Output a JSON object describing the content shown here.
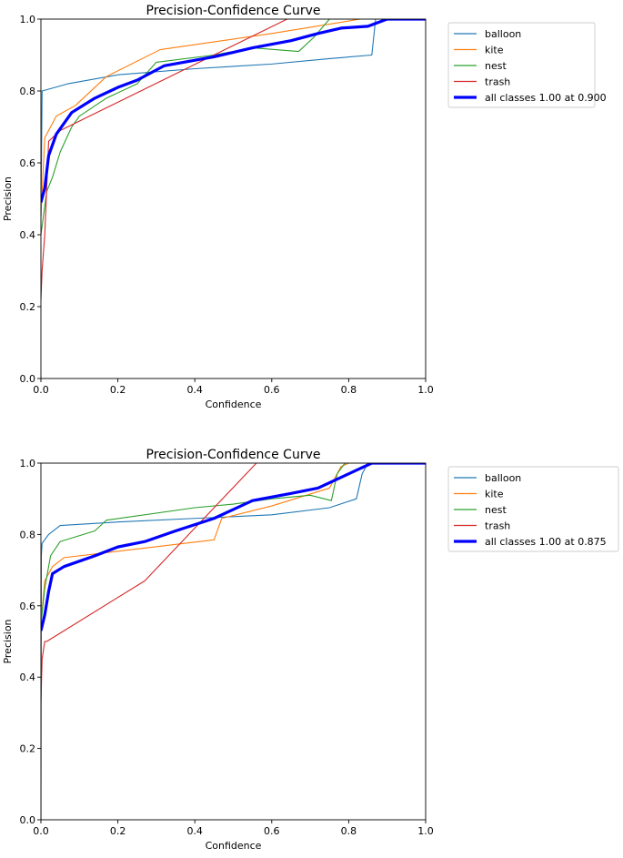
{
  "chart_data": [
    {
      "type": "line",
      "title": "Precision-Confidence Curve",
      "xlabel": "Confidence",
      "ylabel": "Precision",
      "xlim": [
        0.0,
        1.0
      ],
      "ylim": [
        0.0,
        1.0
      ],
      "grid": false,
      "legend_position": "outside-right",
      "x_ticks": [
        "0.0",
        "0.2",
        "0.4",
        "0.6",
        "0.8",
        "1.0"
      ],
      "y_ticks": [
        "0.0",
        "0.2",
        "0.4",
        "0.6",
        "0.8",
        "1.0"
      ],
      "series": [
        {
          "name": "balloon",
          "label": "balloon",
          "color": "#1f77b4",
          "bold": false,
          "points": [
            [
              0.0,
              0.45
            ],
            [
              0.003,
              0.8
            ],
            [
              0.02,
              0.805
            ],
            [
              0.07,
              0.82
            ],
            [
              0.2,
              0.845
            ],
            [
              0.4,
              0.862
            ],
            [
              0.6,
              0.875
            ],
            [
              0.75,
              0.89
            ],
            [
              0.86,
              0.9
            ],
            [
              0.865,
              0.95
            ],
            [
              0.87,
              1.0
            ],
            [
              1.0,
              1.0
            ]
          ]
        },
        {
          "name": "kite",
          "label": "kite",
          "color": "#ff7f0e",
          "bold": false,
          "points": [
            [
              0.0,
              0.45
            ],
            [
              0.01,
              0.67
            ],
            [
              0.04,
              0.73
            ],
            [
              0.09,
              0.76
            ],
            [
              0.17,
              0.84
            ],
            [
              0.31,
              0.915
            ],
            [
              0.6,
              0.96
            ],
            [
              0.83,
              1.0
            ],
            [
              1.0,
              1.0
            ]
          ]
        },
        {
          "name": "nest",
          "label": "nest",
          "color": "#2ca02c",
          "bold": false,
          "points": [
            [
              0.0,
              0.4
            ],
            [
              0.015,
              0.52
            ],
            [
              0.03,
              0.56
            ],
            [
              0.05,
              0.63
            ],
            [
              0.08,
              0.7
            ],
            [
              0.1,
              0.73
            ],
            [
              0.17,
              0.78
            ],
            [
              0.25,
              0.82
            ],
            [
              0.3,
              0.88
            ],
            [
              0.45,
              0.9
            ],
            [
              0.55,
              0.92
            ],
            [
              0.67,
              0.91
            ],
            [
              0.71,
              0.95
            ],
            [
              0.75,
              1.0
            ],
            [
              1.0,
              1.0
            ]
          ]
        },
        {
          "name": "trash",
          "label": "trash",
          "color": "#d62728",
          "bold": false,
          "points": [
            [
              0.0,
              0.22
            ],
            [
              0.003,
              0.3
            ],
            [
              0.01,
              0.4
            ],
            [
              0.02,
              0.66
            ],
            [
              0.05,
              0.69
            ],
            [
              0.64,
              1.0
            ]
          ]
        },
        {
          "name": "all-classes",
          "label": "all classes 1.00 at 0.900",
          "color": "#0000ff",
          "bold": true,
          "points": [
            [
              0.0,
              0.49
            ],
            [
              0.01,
              0.53
            ],
            [
              0.02,
              0.62
            ],
            [
              0.04,
              0.68
            ],
            [
              0.08,
              0.74
            ],
            [
              0.14,
              0.78
            ],
            [
              0.2,
              0.81
            ],
            [
              0.25,
              0.83
            ],
            [
              0.32,
              0.87
            ],
            [
              0.45,
              0.895
            ],
            [
              0.55,
              0.92
            ],
            [
              0.65,
              0.94
            ],
            [
              0.72,
              0.96
            ],
            [
              0.78,
              0.975
            ],
            [
              0.85,
              0.98
            ],
            [
              0.9,
              1.0
            ],
            [
              1.0,
              1.0
            ]
          ]
        }
      ]
    },
    {
      "type": "line",
      "title": "Precision-Confidence Curve",
      "xlabel": "Confidence",
      "ylabel": "Precision",
      "xlim": [
        0.0,
        1.0
      ],
      "ylim": [
        0.0,
        1.0
      ],
      "grid": false,
      "legend_position": "outside-right",
      "x_ticks": [
        "0.0",
        "0.2",
        "0.4",
        "0.6",
        "0.8",
        "1.0"
      ],
      "y_ticks": [
        "0.0",
        "0.2",
        "0.4",
        "0.6",
        "0.8",
        "1.0"
      ],
      "series": [
        {
          "name": "balloon",
          "label": "balloon",
          "color": "#1f77b4",
          "bold": false,
          "points": [
            [
              0.0,
              0.0
            ],
            [
              0.001,
              0.74
            ],
            [
              0.003,
              0.775
            ],
            [
              0.02,
              0.8
            ],
            [
              0.05,
              0.825
            ],
            [
              0.2,
              0.835
            ],
            [
              0.4,
              0.845
            ],
            [
              0.6,
              0.855
            ],
            [
              0.75,
              0.875
            ],
            [
              0.82,
              0.9
            ],
            [
              0.835,
              0.97
            ],
            [
              0.85,
              1.0
            ],
            [
              1.0,
              1.0
            ]
          ]
        },
        {
          "name": "kite",
          "label": "kite",
          "color": "#ff7f0e",
          "bold": false,
          "points": [
            [
              0.0,
              0.55
            ],
            [
              0.01,
              0.67
            ],
            [
              0.03,
              0.71
            ],
            [
              0.06,
              0.735
            ],
            [
              0.45,
              0.785
            ],
            [
              0.47,
              0.845
            ],
            [
              0.6,
              0.88
            ],
            [
              0.75,
              0.93
            ],
            [
              0.78,
              0.99
            ],
            [
              0.8,
              1.0
            ],
            [
              1.0,
              1.0
            ]
          ]
        },
        {
          "name": "nest",
          "label": "nest",
          "color": "#2ca02c",
          "bold": false,
          "points": [
            [
              0.0,
              0.55
            ],
            [
              0.01,
              0.65
            ],
            [
              0.025,
              0.74
            ],
            [
              0.05,
              0.78
            ],
            [
              0.14,
              0.81
            ],
            [
              0.17,
              0.84
            ],
            [
              0.4,
              0.875
            ],
            [
              0.5,
              0.885
            ],
            [
              0.6,
              0.9
            ],
            [
              0.7,
              0.91
            ],
            [
              0.755,
              0.895
            ],
            [
              0.77,
              0.97
            ],
            [
              0.79,
              1.0
            ],
            [
              1.0,
              1.0
            ]
          ]
        },
        {
          "name": "trash",
          "label": "trash",
          "color": "#d62728",
          "bold": false,
          "points": [
            [
              0.0,
              0.33
            ],
            [
              0.003,
              0.45
            ],
            [
              0.01,
              0.5
            ],
            [
              0.015,
              0.5
            ],
            [
              0.27,
              0.67
            ],
            [
              0.56,
              1.0
            ]
          ]
        },
        {
          "name": "all-classes",
          "label": "all classes 1.00 at 0.875",
          "color": "#0000ff",
          "bold": true,
          "points": [
            [
              0.0,
              0.53
            ],
            [
              0.01,
              0.575
            ],
            [
              0.02,
              0.64
            ],
            [
              0.03,
              0.69
            ],
            [
              0.06,
              0.71
            ],
            [
              0.14,
              0.74
            ],
            [
              0.2,
              0.765
            ],
            [
              0.27,
              0.78
            ],
            [
              0.35,
              0.81
            ],
            [
              0.45,
              0.845
            ],
            [
              0.55,
              0.895
            ],
            [
              0.65,
              0.915
            ],
            [
              0.72,
              0.93
            ],
            [
              0.78,
              0.96
            ],
            [
              0.82,
              0.98
            ],
            [
              0.86,
              1.0
            ],
            [
              1.0,
              1.0
            ]
          ]
        }
      ]
    }
  ]
}
